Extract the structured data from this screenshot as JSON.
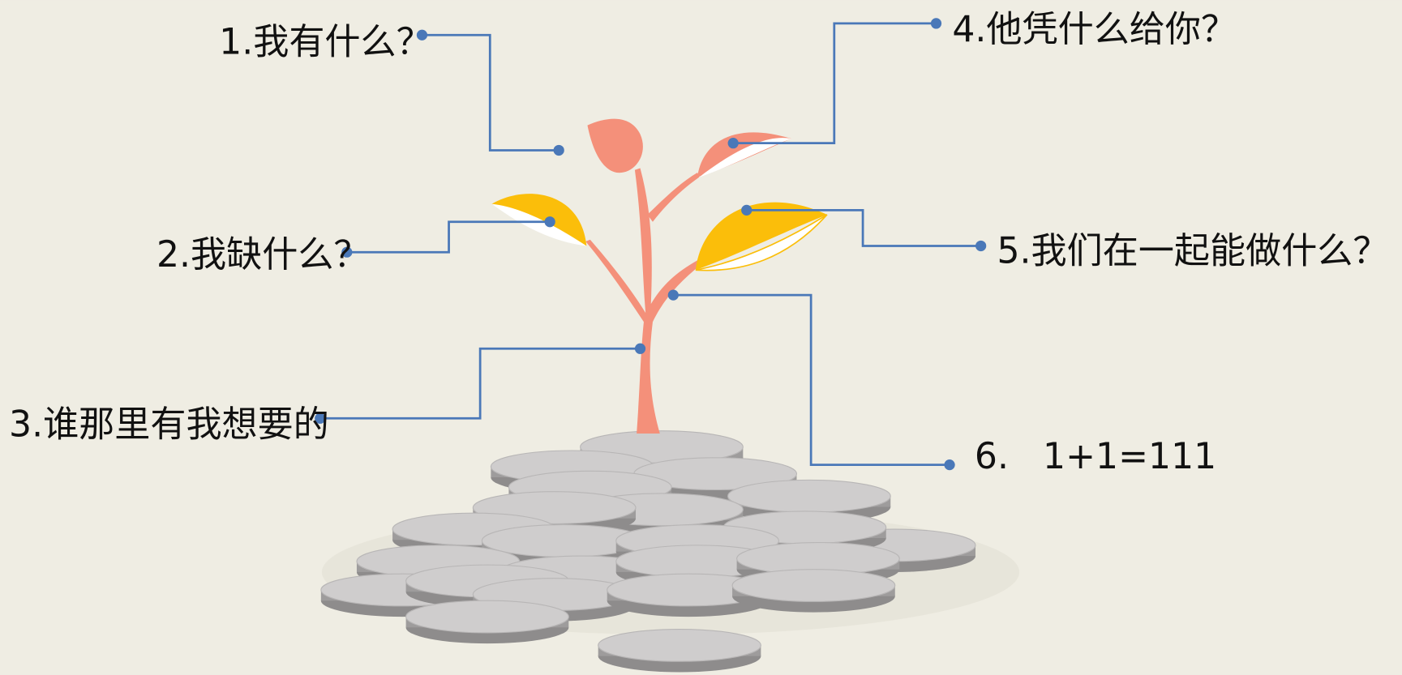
{
  "labels": [
    "1.我有什么？",
    "2.我缺什么？",
    "3.谁那里有我想要的",
    "4.他凭什么给你？",
    "5.我们在一起能做什么？",
    "6.   1+1=111"
  ]
}
